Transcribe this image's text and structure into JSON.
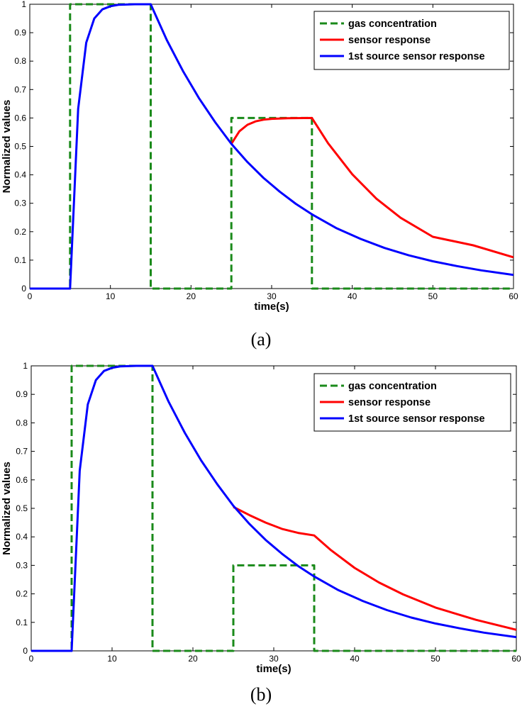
{
  "chart_data": [
    {
      "type": "line",
      "caption": "(a)",
      "xlabel": "time(s)",
      "ylabel": "Normalized values",
      "xlim": [
        0,
        60
      ],
      "ylim": [
        0,
        1
      ],
      "xticks": [
        0,
        10,
        20,
        30,
        40,
        50,
        60
      ],
      "yticks": [
        0,
        0.1,
        0.2,
        0.3,
        0.4,
        0.5,
        0.6,
        0.7,
        0.8,
        0.9,
        1
      ],
      "ytick_labels": [
        "0",
        "0.1",
        "0.2",
        "0.3",
        "0.4",
        "0.5",
        "0.6",
        "0.7",
        "0.8",
        "0.9",
        "1"
      ],
      "legend_position": "top-right",
      "series": [
        {
          "name": "gas concentration",
          "color": "#1a8a1a",
          "style": "dashed",
          "x": [
            0,
            5,
            5,
            15,
            15,
            25,
            25,
            35,
            35,
            60
          ],
          "y": [
            0,
            0,
            1,
            1,
            0,
            0,
            0.6,
            0.6,
            0,
            0
          ]
        },
        {
          "name": "sensor response",
          "color": "#ff0000",
          "style": "solid",
          "x": [
            25,
            26,
            27,
            28,
            29,
            30,
            32,
            35,
            37,
            40,
            43,
            46,
            50,
            55,
            60
          ],
          "y": [
            0.509,
            0.553,
            0.576,
            0.588,
            0.594,
            0.597,
            0.599,
            0.6,
            0.511,
            0.402,
            0.316,
            0.249,
            0.182,
            0.152,
            0.11
          ]
        },
        {
          "name": "1st source sensor response",
          "color": "#0000ff",
          "style": "solid",
          "x": [
            0,
            5,
            6,
            7,
            8,
            9,
            10,
            11,
            12,
            13,
            14,
            15,
            17,
            19,
            21,
            23,
            25,
            27,
            29,
            31,
            33,
            35,
            38,
            41,
            44,
            47,
            50,
            53,
            56,
            60
          ],
          "y": [
            0,
            0,
            0.632,
            0.865,
            0.95,
            0.982,
            0.993,
            0.998,
            0.999,
            1,
            1,
            1,
            0.874,
            0.765,
            0.669,
            0.585,
            0.509,
            0.445,
            0.389,
            0.341,
            0.298,
            0.261,
            0.213,
            0.175,
            0.143,
            0.117,
            0.096,
            0.079,
            0.064,
            0.048
          ]
        }
      ]
    },
    {
      "type": "line",
      "caption": "(b)",
      "xlabel": "time(s)",
      "ylabel": "Normalized values",
      "xlim": [
        0,
        60
      ],
      "ylim": [
        0,
        1
      ],
      "xticks": [
        0,
        10,
        20,
        30,
        40,
        50,
        60
      ],
      "yticks": [
        0,
        0.1,
        0.2,
        0.3,
        0.4,
        0.5,
        0.6,
        0.7,
        0.8,
        0.9,
        1
      ],
      "ytick_labels": [
        "0",
        "0.1",
        "0.2",
        "0.3",
        "0.4",
        "0.5",
        "0.6",
        "0.7",
        "0.8",
        "0.9",
        "1"
      ],
      "legend_position": "top-right",
      "series": [
        {
          "name": "gas concentration",
          "color": "#1a8a1a",
          "style": "dashed",
          "x": [
            0,
            5,
            5,
            15,
            15,
            25,
            25,
            35,
            35,
            60
          ],
          "y": [
            0,
            0,
            1,
            1,
            0,
            0,
            0.3,
            0.3,
            0,
            0
          ]
        },
        {
          "name": "sensor response",
          "color": "#ff0000",
          "style": "solid",
          "x": [
            25,
            27,
            29,
            31,
            33,
            35,
            37,
            40,
            43,
            46,
            50,
            55,
            60
          ],
          "y": [
            0.505,
            0.476,
            0.45,
            0.428,
            0.414,
            0.405,
            0.355,
            0.291,
            0.24,
            0.198,
            0.152,
            0.109,
            0.074
          ]
        },
        {
          "name": "1st source sensor response",
          "color": "#0000ff",
          "style": "solid",
          "x": [
            0,
            5,
            6,
            7,
            8,
            9,
            10,
            11,
            12,
            13,
            14,
            15,
            17,
            19,
            21,
            23,
            25,
            27,
            29,
            31,
            33,
            35,
            38,
            41,
            44,
            47,
            50,
            53,
            56,
            60
          ],
          "y": [
            0,
            0,
            0.632,
            0.865,
            0.95,
            0.982,
            0.993,
            0.998,
            0.999,
            1,
            1,
            1,
            0.874,
            0.765,
            0.669,
            0.585,
            0.509,
            0.445,
            0.389,
            0.341,
            0.298,
            0.261,
            0.213,
            0.175,
            0.143,
            0.117,
            0.096,
            0.079,
            0.064,
            0.048
          ]
        }
      ]
    }
  ]
}
